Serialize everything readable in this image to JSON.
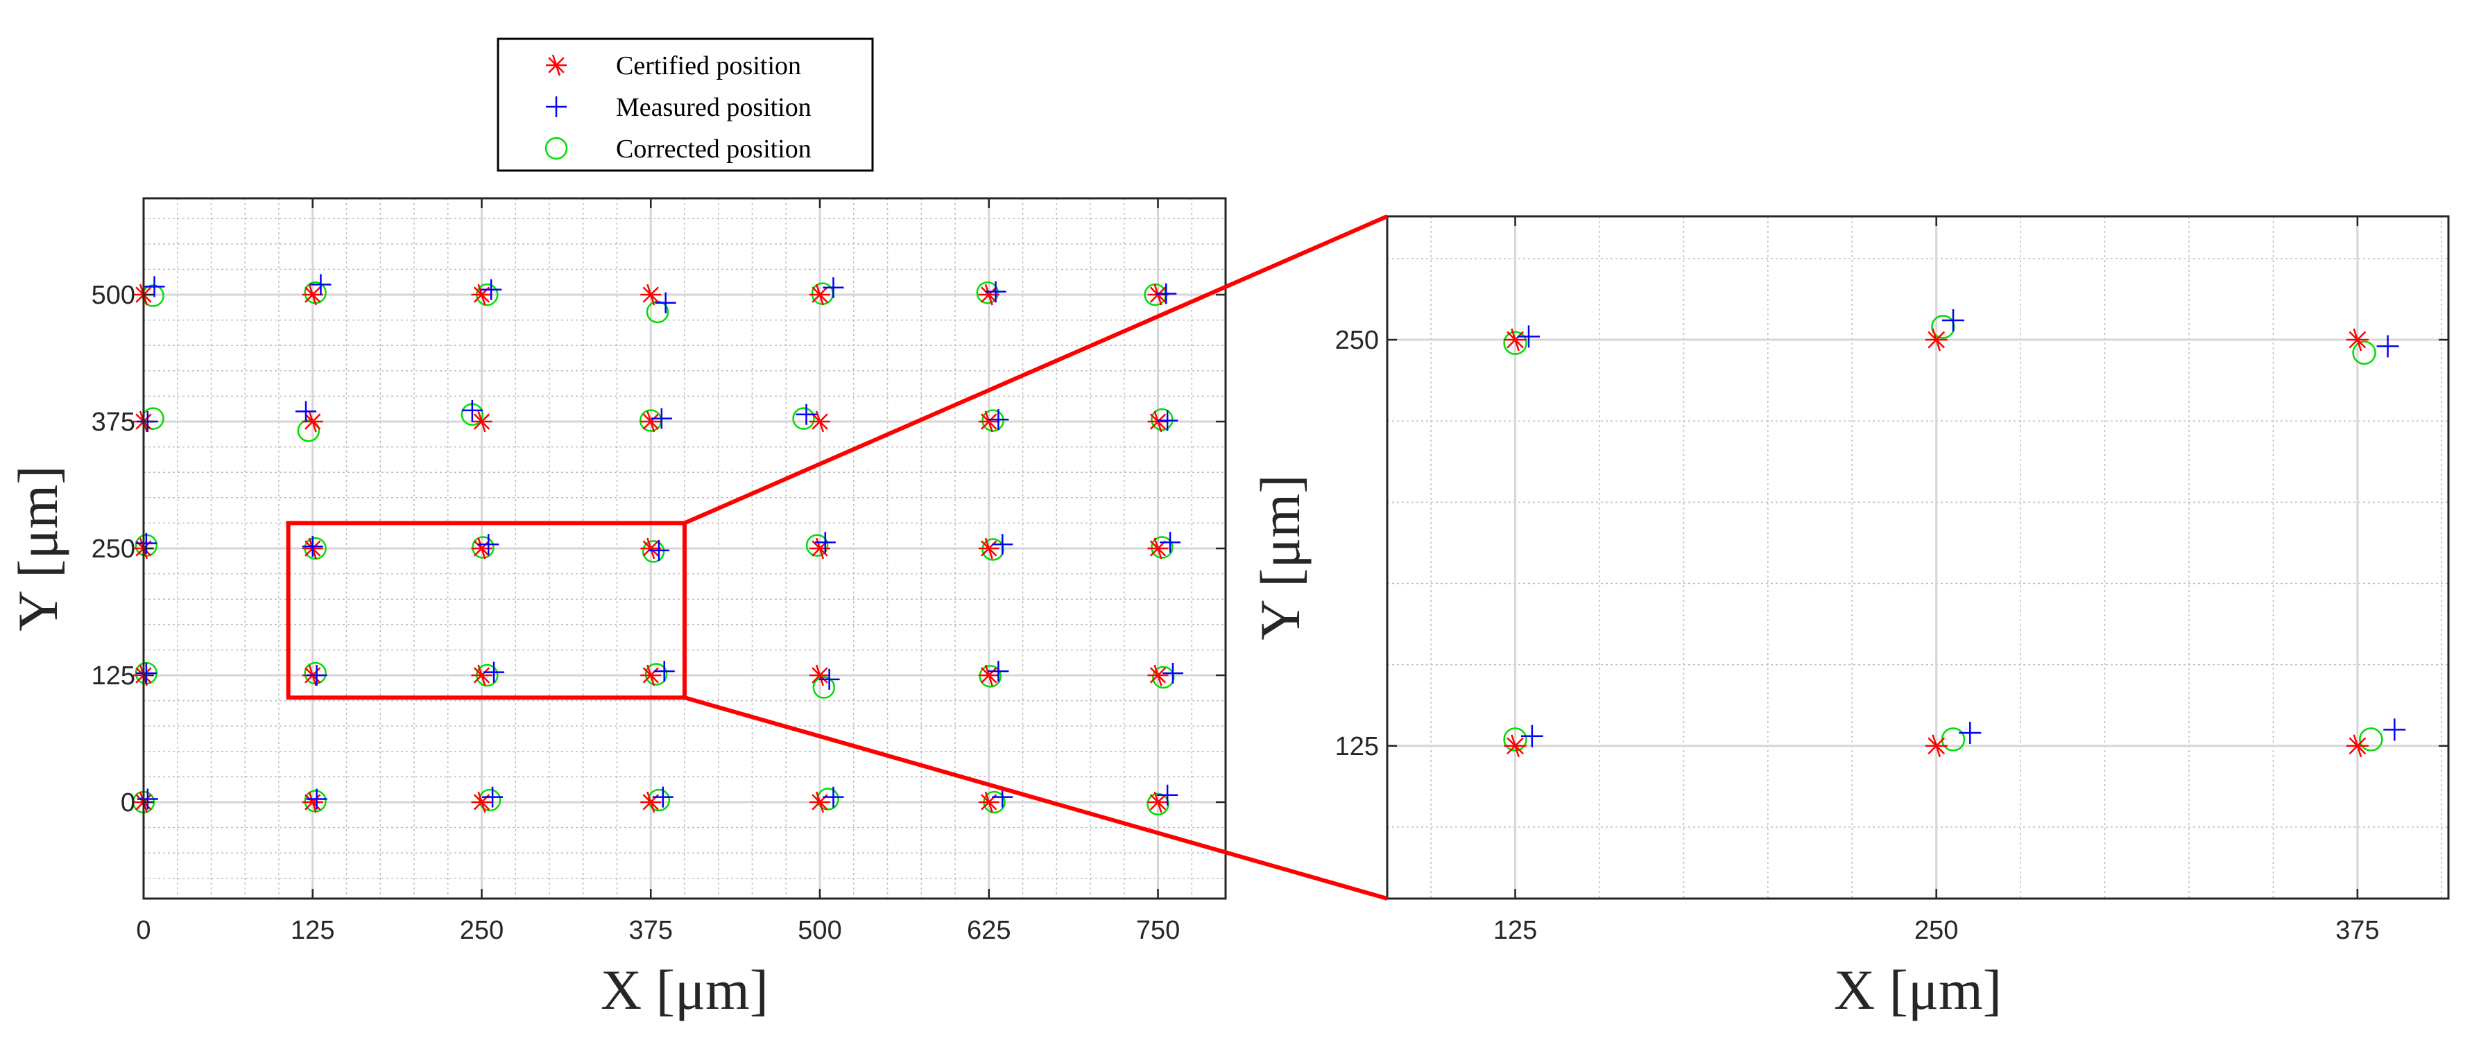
{
  "chart_data": [
    {
      "id": "main",
      "type": "scatter",
      "xlabel": "X [μm]",
      "ylabel": "Y [μm]",
      "xlim": [
        0,
        800
      ],
      "ylim": [
        -95,
        595
      ],
      "xticks": [
        0,
        125,
        250,
        375,
        500,
        625,
        750
      ],
      "xtick_labels": [
        "0",
        "125",
        "250",
        "375",
        "500",
        "625",
        "750"
      ],
      "yticks": [
        0,
        125,
        250,
        375,
        500
      ],
      "ytick_labels": [
        "0",
        "125",
        "250",
        "375",
        "500"
      ],
      "grid": true,
      "minor_grid": true,
      "legend": {
        "position": "top",
        "entries": [
          {
            "label": "Certified position",
            "marker": "asterisk",
            "color": "#ff0000"
          },
          {
            "label": "Measured position",
            "marker": "plus",
            "color": "#0000ff"
          },
          {
            "label": "Corrected position",
            "marker": "circle",
            "color": "#00dd00"
          }
        ]
      },
      "series": [
        {
          "name": "Certified position",
          "marker": "asterisk",
          "color": "#ff0000",
          "points": [
            [
              0,
              500
            ],
            [
              125,
              500
            ],
            [
              250,
              500
            ],
            [
              375,
              500
            ],
            [
              500,
              500
            ],
            [
              625,
              500
            ],
            [
              750,
              500
            ],
            [
              0,
              375
            ],
            [
              125,
              375
            ],
            [
              250,
              375
            ],
            [
              375,
              375
            ],
            [
              500,
              375
            ],
            [
              625,
              375
            ],
            [
              750,
              375
            ],
            [
              0,
              250
            ],
            [
              125,
              250
            ],
            [
              250,
              250
            ],
            [
              375,
              250
            ],
            [
              500,
              250
            ],
            [
              625,
              250
            ],
            [
              750,
              250
            ],
            [
              0,
              125
            ],
            [
              125,
              125
            ],
            [
              250,
              125
            ],
            [
              375,
              125
            ],
            [
              500,
              125
            ],
            [
              625,
              125
            ],
            [
              750,
              125
            ],
            [
              0,
              0
            ],
            [
              125,
              0
            ],
            [
              250,
              0
            ],
            [
              375,
              0
            ],
            [
              500,
              0
            ],
            [
              625,
              0
            ],
            [
              750,
              0
            ]
          ]
        },
        {
          "name": "Measured position",
          "marker": "plus",
          "color": "#0000ff",
          "points": [
            [
              8,
              508
            ],
            [
              131,
              510
            ],
            [
              257,
              505
            ],
            [
              386,
              492
            ],
            [
              510,
              507
            ],
            [
              630,
              503
            ],
            [
              756,
              501
            ],
            [
              3,
              375
            ],
            [
              120,
              385
            ],
            [
              243,
              386
            ],
            [
              383,
              378
            ],
            [
              490,
              382
            ],
            [
              632,
              377
            ],
            [
              757,
              376
            ],
            [
              2,
              255
            ],
            [
              125,
              252
            ],
            [
              255,
              254
            ],
            [
              381,
              248
            ],
            [
              504,
              256
            ],
            [
              635,
              254
            ],
            [
              759,
              256
            ],
            [
              2,
              127
            ],
            [
              128,
              125
            ],
            [
              259,
              128
            ],
            [
              385,
              129
            ],
            [
              507,
              121
            ],
            [
              632,
              129
            ],
            [
              761,
              127
            ],
            [
              3,
              3
            ],
            [
              128,
              3
            ],
            [
              258,
              5
            ],
            [
              384,
              5
            ],
            [
              510,
              5
            ],
            [
              635,
              5
            ],
            [
              757,
              7
            ]
          ]
        },
        {
          "name": "Corrected position",
          "marker": "circle",
          "color": "#00dd00",
          "points": [
            [
              7,
              499
            ],
            [
              127,
              502
            ],
            [
              254,
              500
            ],
            [
              380,
              483
            ],
            [
              502,
              501
            ],
            [
              624,
              502
            ],
            [
              748,
              500
            ],
            [
              7,
              378
            ],
            [
              122,
              366
            ],
            [
              243,
              382
            ],
            [
              375,
              376
            ],
            [
              488,
              378
            ],
            [
              628,
              376
            ],
            [
              753,
              377
            ],
            [
              2,
              253
            ],
            [
              127,
              250
            ],
            [
              251,
              251
            ],
            [
              377,
              247
            ],
            [
              498,
              253
            ],
            [
              628,
              249
            ],
            [
              753,
              251
            ],
            [
              2,
              127
            ],
            [
              127,
              127
            ],
            [
              254,
              125
            ],
            [
              379,
              126
            ],
            [
              503,
              113
            ],
            [
              626,
              124
            ],
            [
              754,
              123
            ],
            [
              0,
              0
            ],
            [
              127,
              1
            ],
            [
              256,
              2
            ],
            [
              381,
              2
            ],
            [
              506,
              3
            ],
            [
              629,
              0
            ],
            [
              750,
              -2
            ]
          ]
        }
      ],
      "highlight_box": {
        "x0": 107,
        "x1": 400,
        "y0": 103,
        "y1": 275,
        "color": "#ff0000"
      }
    },
    {
      "id": "zoom",
      "type": "scatter",
      "xlabel": "X [μm]",
      "ylabel": "Y [μm]",
      "xlim": [
        87,
        402
      ],
      "ylim": [
        78,
        288
      ],
      "xticks": [
        125,
        250,
        375
      ],
      "xtick_labels": [
        "125",
        "250",
        "375"
      ],
      "yticks": [
        125,
        250
      ],
      "ytick_labels": [
        "125",
        "250"
      ],
      "grid": true,
      "minor_grid": true,
      "series": [
        {
          "name": "Certified position",
          "marker": "asterisk",
          "color": "#ff0000",
          "points": [
            [
              125,
              250
            ],
            [
              250,
              250
            ],
            [
              375,
              250
            ],
            [
              125,
              125
            ],
            [
              250,
              125
            ],
            [
              375,
              125
            ]
          ]
        },
        {
          "name": "Measured position",
          "marker": "plus",
          "color": "#0000ff",
          "points": [
            [
              129,
              251
            ],
            [
              255,
              256
            ],
            [
              384,
              248
            ],
            [
              130,
              128
            ],
            [
              260,
              129
            ],
            [
              386,
              130
            ]
          ]
        },
        {
          "name": "Corrected position",
          "marker": "circle",
          "color": "#00dd00",
          "points": [
            [
              125,
              249
            ],
            [
              252,
              254
            ],
            [
              377,
              246
            ],
            [
              125,
              127
            ],
            [
              255,
              127
            ],
            [
              379,
              127
            ]
          ]
        }
      ]
    }
  ]
}
